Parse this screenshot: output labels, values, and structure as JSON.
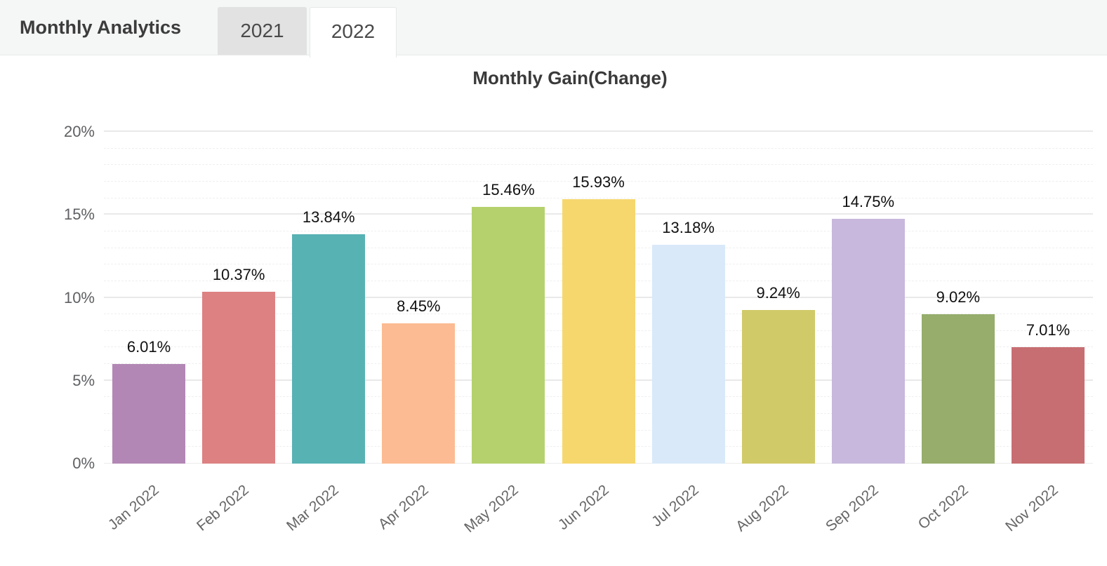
{
  "header": {
    "title": "Monthly Analytics",
    "tabs": [
      {
        "label": "2021",
        "active": false
      },
      {
        "label": "2022",
        "active": true
      }
    ]
  },
  "chart_data": {
    "type": "bar",
    "title": "Monthly Gain(Change)",
    "categories": [
      "Jan 2022",
      "Feb 2022",
      "Mar 2022",
      "Apr 2022",
      "May 2022",
      "Jun 2022",
      "Jul 2022",
      "Aug 2022",
      "Sep 2022",
      "Oct 2022",
      "Nov 2022"
    ],
    "values": [
      6.01,
      10.37,
      13.84,
      8.45,
      15.46,
      15.93,
      13.18,
      9.24,
      14.75,
      9.02,
      7.01
    ],
    "value_labels": [
      "6.01%",
      "10.37%",
      "13.84%",
      "8.45%",
      "15.46%",
      "15.93%",
      "13.18%",
      "9.24%",
      "14.75%",
      "9.02%",
      "7.01%"
    ],
    "bar_colors": [
      "#b287b5",
      "#dd8182",
      "#57b2b4",
      "#fcbb92",
      "#b5d16d",
      "#f6d76e",
      "#d9e9f9",
      "#d0ca69",
      "#c8b8dd",
      "#96ad6c",
      "#c76e72"
    ],
    "xlabel": "",
    "ylabel": "",
    "ylim": [
      0,
      20
    ],
    "ytick_step_major": 5,
    "ytick_step_minor": 1,
    "yticks": [
      "0%",
      "5%",
      "10%",
      "15%",
      "20%"
    ],
    "grid": "horizontal",
    "legend_position": "none",
    "x_tick_rotation_deg": -40
  },
  "colors": {
    "header_bg": "#f5f6f6",
    "tab_inactive_bg": "#e2e2e2",
    "tab_active_bg": "#ffffff",
    "gridline_major": "#e9e9e9",
    "axis_label": "#5f6063",
    "value_label": "#101010"
  }
}
